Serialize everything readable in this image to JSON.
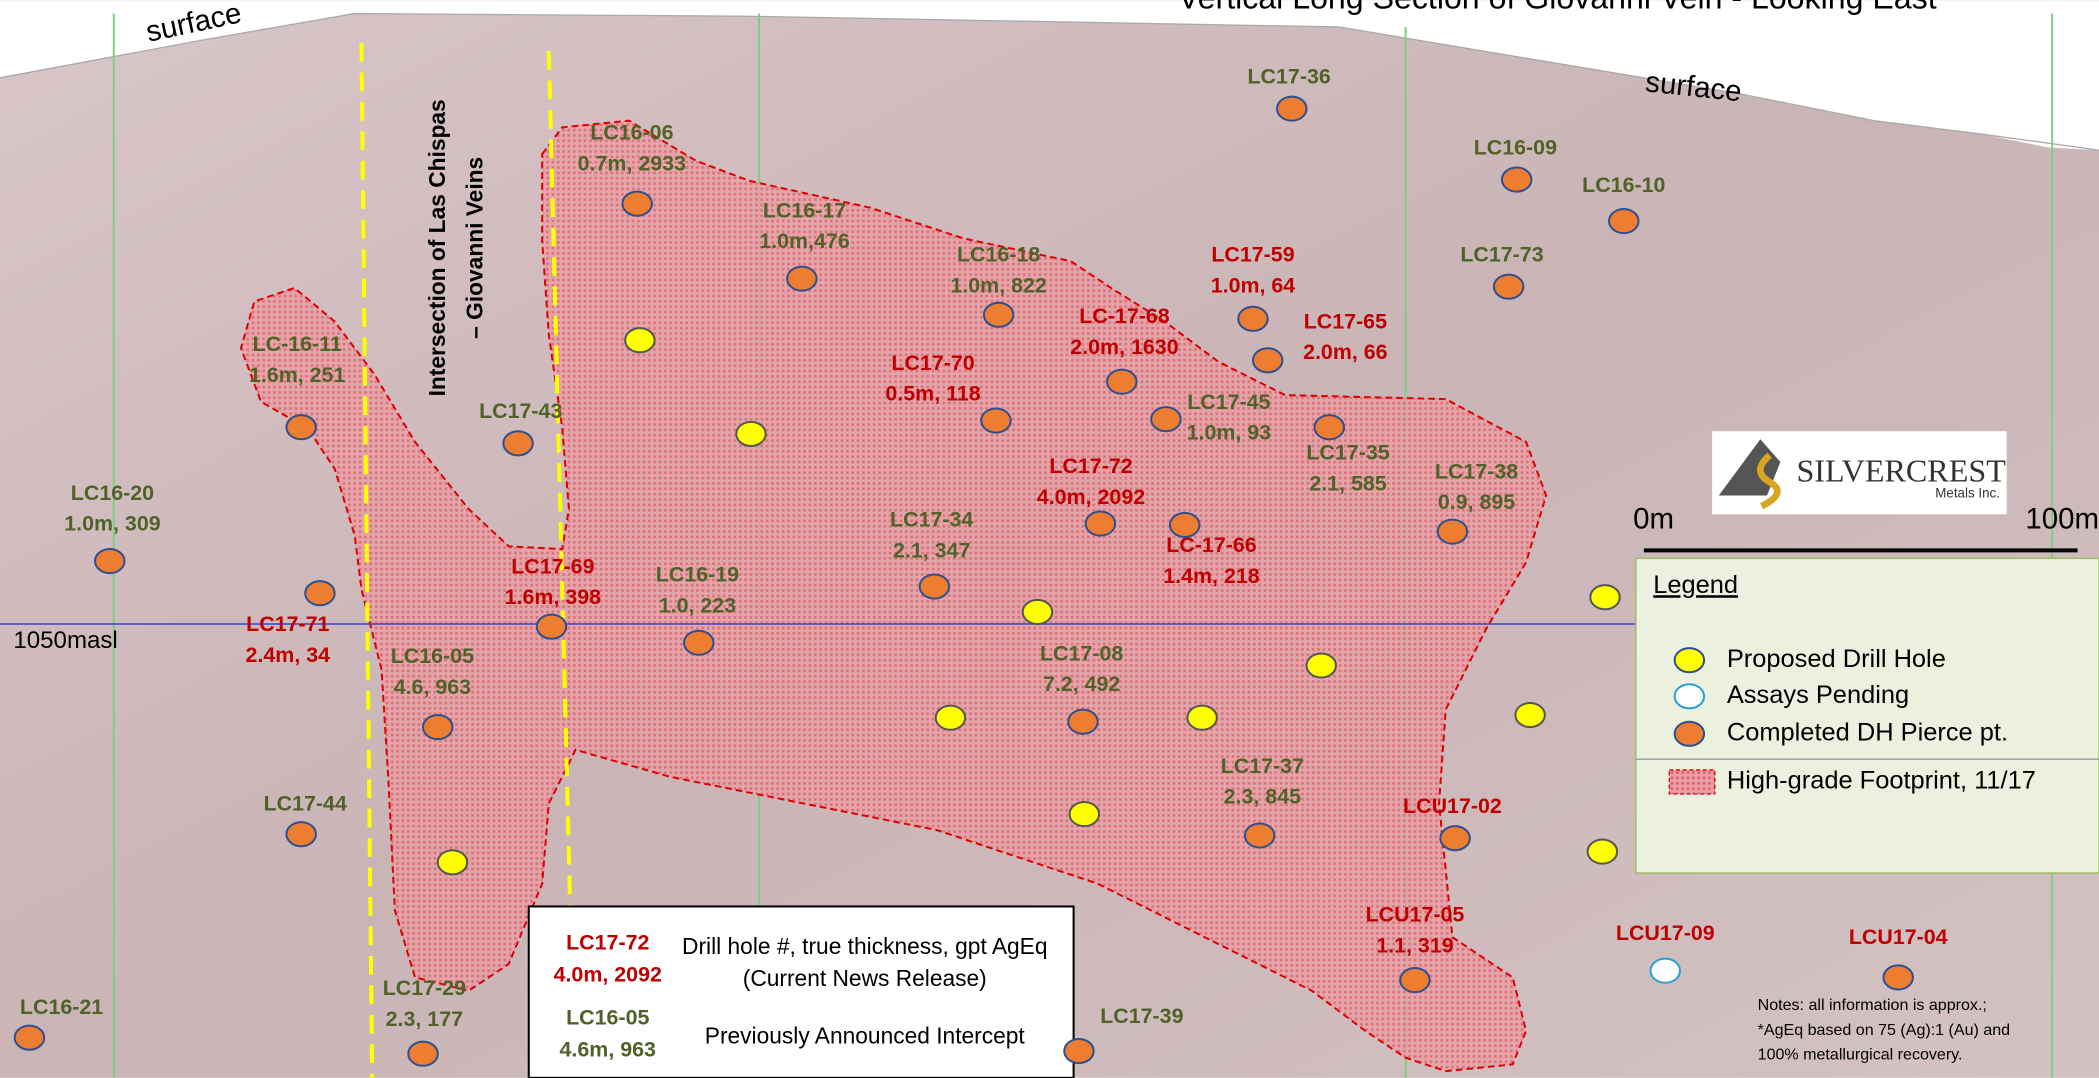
{
  "title": "Vertical Long Section of Giovanni Vein - Looking East",
  "surface_labels": [
    "surface",
    "surface"
  ],
  "level_label": "1050masl",
  "intersection_label": [
    "Intersection of Las Chispas",
    "– Giovanni Veins"
  ],
  "scale": {
    "start": "0m",
    "end": "100m"
  },
  "logo": {
    "name": "SILVERCREST",
    "sub": "Metals Inc."
  },
  "legend": {
    "title": "Legend",
    "items": [
      {
        "label": "Proposed Drill Hole",
        "color": "#ffff00"
      },
      {
        "label": "Assays Pending",
        "color": "#ffffff"
      },
      {
        "label": "Completed DH Pierce pt.",
        "color": "#ed7d31"
      },
      {
        "label": "High-grade Footprint, 11/17",
        "color": "#e8595f"
      }
    ]
  },
  "key": {
    "current": {
      "id": "LC17-72",
      "result": "4.0m, 2092",
      "text": [
        "Drill hole #, true thickness, gpt AgEq",
        "(Current News Release)"
      ]
    },
    "previous": {
      "id": "LC16-05",
      "result": "4.6m, 963",
      "text": [
        "Previously Announced Intercept"
      ]
    }
  },
  "notes": [
    "Notes: all information is approx.;",
    "*AgEq based on 75 (Ag):1 (Au) and",
    "100% metallurgical recovery."
  ],
  "groups": {
    "current": {
      "color": "#c00000",
      "holes": [
        {
          "id": "LC17-59",
          "result": "1.0m, 64"
        },
        {
          "id": "LC17-65",
          "result": "2.0m, 66"
        },
        {
          "id": "LC-17-68",
          "result": "2.0m, 1630"
        },
        {
          "id": "LC17-70",
          "result": "0.5m, 118"
        },
        {
          "id": "LC17-72",
          "result": "4.0m, 2092"
        },
        {
          "id": "LC-17-66",
          "result": "1.4m, 218"
        },
        {
          "id": "LC17-69",
          "result": "1.6m, 398"
        },
        {
          "id": "LC17-71",
          "result": "2.4m, 34"
        },
        {
          "id": "LCU17-02"
        },
        {
          "id": "LCU17-05",
          "result": "1.1, 319"
        },
        {
          "id": "LCU17-09"
        },
        {
          "id": "LCU17-04"
        }
      ]
    },
    "previous": {
      "color": "#4f6228",
      "holes": [
        {
          "id": "LC16-06",
          "result": "0.7m, 2933"
        },
        {
          "id": "LC16-17",
          "result": "1.0m,476"
        },
        {
          "id": "LC16-18",
          "result": "1.0m, 822"
        },
        {
          "id": "LC17-45",
          "result": "1.0m, 93"
        },
        {
          "id": "LC17-35",
          "result": "2.1, 585"
        },
        {
          "id": "LC17-38",
          "result": "0.9, 895"
        },
        {
          "id": "LC17-34",
          "result": "2.1, 347"
        },
        {
          "id": "LC16-19",
          "result": "1.0, 223"
        },
        {
          "id": "LC16-05",
          "result": "4.6, 963"
        },
        {
          "id": "LC17-08",
          "result": "7.2, 492"
        },
        {
          "id": "LC17-37",
          "result": "2.3, 845"
        },
        {
          "id": "LC17-39"
        },
        {
          "id": "LC17-29",
          "result": "2.3, 177"
        },
        {
          "id": "LC16-21"
        },
        {
          "id": "LC17-44"
        },
        {
          "id": "LC16-20",
          "result": "1.0m, 309"
        },
        {
          "id": "LC-16-11",
          "result": "1.6m, 251"
        },
        {
          "id": "LC17-43"
        },
        {
          "id": "LC17-36"
        },
        {
          "id": "LC16-09"
        },
        {
          "id": "LC16-10"
        },
        {
          "id": "LC17-73"
        }
      ]
    }
  }
}
